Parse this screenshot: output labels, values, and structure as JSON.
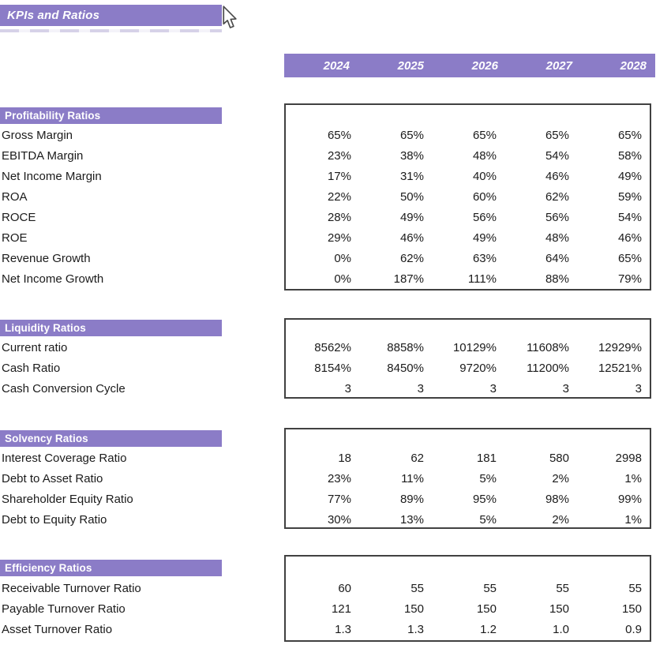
{
  "page": {
    "title": "KPIs and Ratios"
  },
  "colors": {
    "accent_purple": "#8B7CC7",
    "box_border": "#414141",
    "text": "#1B1B1B",
    "header_text": "#FFFFFF"
  },
  "icons": {
    "cursor": "arrow-pointer"
  },
  "year_header": {
    "years": [
      "2024",
      "2025",
      "2026",
      "2027",
      "2028"
    ]
  },
  "sections": [
    {
      "title": "Profitability Ratios",
      "rows": [
        {
          "label": "Gross Margin",
          "values": [
            "65%",
            "65%",
            "65%",
            "65%",
            "65%"
          ]
        },
        {
          "label": "EBITDA Margin",
          "values": [
            "23%",
            "38%",
            "48%",
            "54%",
            "58%"
          ]
        },
        {
          "label": "Net Income Margin",
          "values": [
            "17%",
            "31%",
            "40%",
            "46%",
            "49%"
          ]
        },
        {
          "label": "ROA",
          "values": [
            "22%",
            "50%",
            "60%",
            "62%",
            "59%"
          ]
        },
        {
          "label": "ROCE",
          "values": [
            "28%",
            "49%",
            "56%",
            "56%",
            "54%"
          ]
        },
        {
          "label": "ROE",
          "values": [
            "29%",
            "46%",
            "49%",
            "48%",
            "46%"
          ]
        },
        {
          "label": "Revenue Growth",
          "values": [
            "0%",
            "62%",
            "63%",
            "64%",
            "65%"
          ]
        },
        {
          "label": "Net Income Growth",
          "values": [
            "0%",
            "187%",
            "111%",
            "88%",
            "79%"
          ]
        }
      ]
    },
    {
      "title": "Liquidity Ratios",
      "rows": [
        {
          "label": "Current ratio",
          "values": [
            "8562%",
            "8858%",
            "10129%",
            "11608%",
            "12929%"
          ]
        },
        {
          "label": "Cash Ratio",
          "values": [
            "8154%",
            "8450%",
            "9720%",
            "11200%",
            "12521%"
          ]
        },
        {
          "label": "Cash Conversion Cycle",
          "values": [
            "3",
            "3",
            "3",
            "3",
            "3"
          ]
        }
      ]
    },
    {
      "title": "Solvency Ratios",
      "rows": [
        {
          "label": "Interest Coverage Ratio",
          "values": [
            "18",
            "62",
            "181",
            "580",
            "2998"
          ]
        },
        {
          "label": "Debt to Asset Ratio",
          "values": [
            "23%",
            "11%",
            "5%",
            "2%",
            "1%"
          ]
        },
        {
          "label": "Shareholder Equity Ratio",
          "values": [
            "77%",
            "89%",
            "95%",
            "98%",
            "99%"
          ]
        },
        {
          "label": "Debt to Equity Ratio",
          "values": [
            "30%",
            "13%",
            "5%",
            "2%",
            "1%"
          ]
        }
      ]
    },
    {
      "title": "Efficiency Ratios",
      "rows": [
        {
          "label": "Receivable Turnover Ratio",
          "values": [
            "60",
            "55",
            "55",
            "55",
            "55"
          ]
        },
        {
          "label": "Payable Turnover Ratio",
          "values": [
            "121",
            "150",
            "150",
            "150",
            "150"
          ]
        },
        {
          "label": "Asset Turnover Ratio",
          "values": [
            "1.3",
            "1.3",
            "1.2",
            "1.0",
            "0.9"
          ]
        }
      ]
    }
  ]
}
